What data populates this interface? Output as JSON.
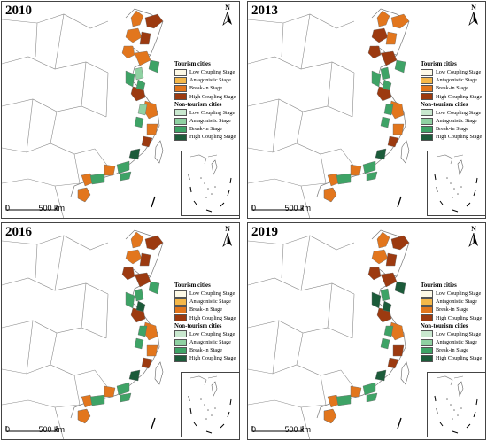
{
  "panels": [
    {
      "year": "2010",
      "tourism": [
        "Break-in",
        "High",
        "Break-in",
        "High",
        "Break-in",
        "Break-in",
        "High",
        "Break-in",
        "Break-in",
        "High",
        "Break-in",
        "Break-in"
      ],
      "nontourism": [
        "Antagonistic",
        "Break-in",
        "Break-in",
        "Break-in",
        "High",
        "Break-in",
        "Break-in",
        "Break-in",
        "Antagonistic",
        "Break-in"
      ]
    },
    {
      "year": "2013",
      "tourism": [
        "Break-in",
        "Break-in",
        "High",
        "Break-in",
        "High",
        "High",
        "High",
        "Break-in",
        "Break-in",
        "High",
        "Break-in",
        "Break-in"
      ],
      "nontourism": [
        "Break-in",
        "Break-in",
        "Break-in",
        "Break-in",
        "High",
        "Break-in",
        "Break-in",
        "Break-in",
        "Break-in",
        "Break-in"
      ]
    },
    {
      "year": "2016",
      "tourism": [
        "Break-in",
        "High",
        "Break-in",
        "High",
        "High",
        "High",
        "High",
        "Break-in",
        "Break-in",
        "High",
        "Break-in",
        "Break-in"
      ],
      "nontourism": [
        "Break-in",
        "Break-in",
        "High",
        "Break-in",
        "High",
        "Break-in",
        "Break-in",
        "Break-in",
        "Break-in",
        "Break-in"
      ]
    },
    {
      "year": "2019",
      "tourism": [
        "Break-in",
        "High",
        "Break-in",
        "High",
        "High",
        "High",
        "High",
        "Break-in",
        "High",
        "High",
        "Break-in",
        "Break-in"
      ],
      "nontourism": [
        "Break-in",
        "High",
        "High",
        "Break-in",
        "High",
        "Break-in",
        "Break-in",
        "High",
        "Break-in",
        "Break-in"
      ]
    }
  ],
  "legend": {
    "tourism_title": "Tourism cities",
    "nontourism_title": "Non-tourism cities",
    "tourism_items": [
      {
        "label": "Low Coupling Stage",
        "color": "#fdf9e6"
      },
      {
        "label": "Antagonistic Stage",
        "color": "#f5b84a"
      },
      {
        "label": "Break-in Stage",
        "color": "#e2761d"
      },
      {
        "label": "High Coupling Stage",
        "color": "#9c3a10"
      }
    ],
    "nontourism_items": [
      {
        "label": "Low Coupling Stage",
        "color": "#c9e8cf"
      },
      {
        "label": "Antagonistic Stage",
        "color": "#8fd1a2"
      },
      {
        "label": "Break-in Stage",
        "color": "#3ea366"
      },
      {
        "label": "High Coupling Stage",
        "color": "#1c5b3a"
      }
    ]
  },
  "stage_colors": {
    "tourism": {
      "Low": "#fdf9e6",
      "Antagonistic": "#f5b84a",
      "Break-in": "#e2761d",
      "High": "#9c3a10"
    },
    "nontourism": {
      "Low": "#c9e8cf",
      "Antagonistic": "#8fd1a2",
      "Break-in": "#3ea366",
      "High": "#1c5b3a"
    }
  },
  "north_arrow": {
    "letter": "N",
    "icon": "north-arrow-icon"
  },
  "scale_bar": {
    "start": "0",
    "end": "500 km"
  }
}
